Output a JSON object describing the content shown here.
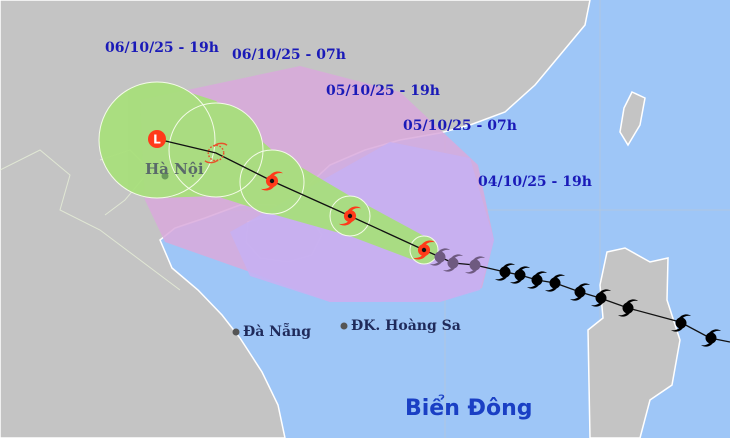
{
  "colors": {
    "ocean": "#9ec6f7",
    "land": "#c4c4c4",
    "danger_zone": "#d9a9dc",
    "risk_zone": "#c7b0f2",
    "forecast_cone": "#a7e07a",
    "storm_symbol": "#ff3a1a",
    "past_track": "#000000",
    "label_blue": "#1a1ab8"
  },
  "time_labels": [
    "06/10/25 - 19h",
    "06/10/25 - 07h",
    "05/10/25 - 19h",
    "05/10/25 - 07h",
    "04/10/25 - 19h"
  ],
  "places": {
    "hanoi": "Hà Nội",
    "danang": "Đà Nẵng",
    "hoangsa": "ĐK. Hoàng Sa",
    "sea": "Biển Đông"
  },
  "low_pressure_symbol": "L",
  "icons": {
    "forecast": [
      "low-pressure-icon",
      "tropical-depression-icon",
      "storm-icon",
      "storm-icon",
      "storm-icon"
    ],
    "past": "past-storm-icon"
  }
}
